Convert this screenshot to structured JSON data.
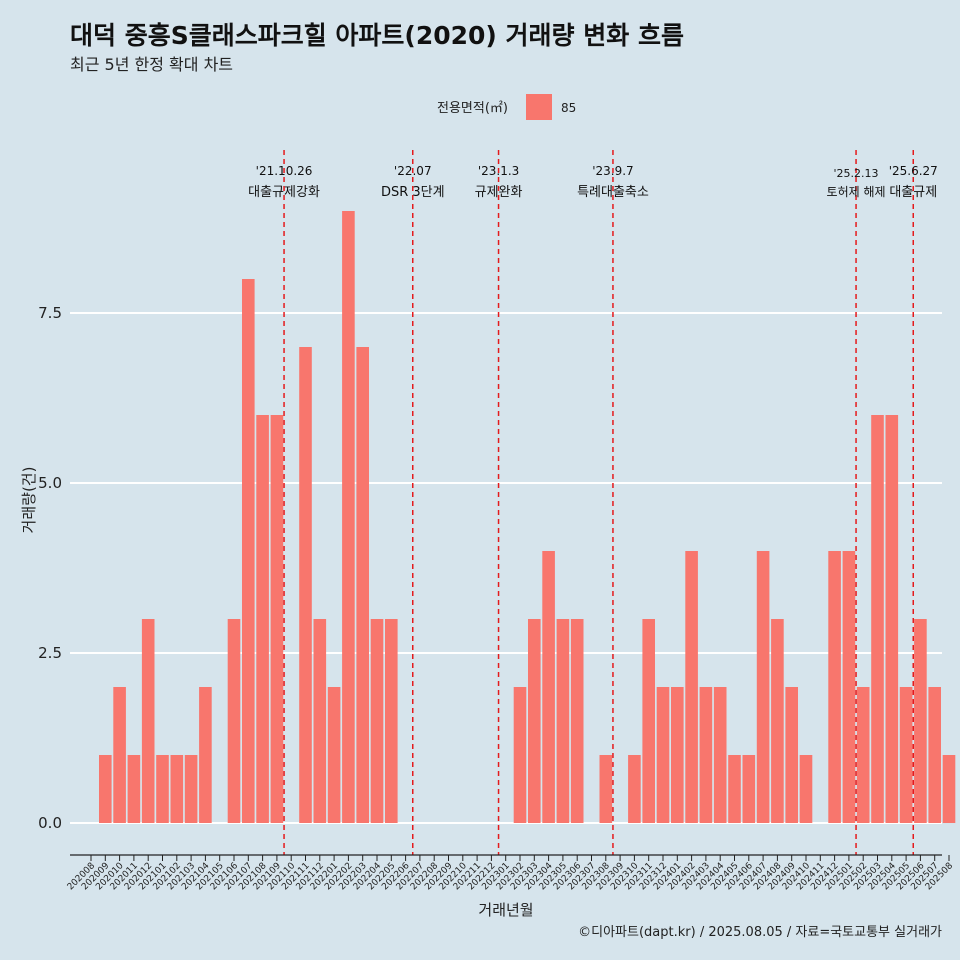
{
  "colors": {
    "background": "#d6e4ec",
    "bar": "#f8766d",
    "event_line": "#e41a1c",
    "grid": "#ffffff",
    "text": "#1a1a1a"
  },
  "chart_data": {
    "type": "bar",
    "title": "대덕 중흥S클래스파크힐 아파트(2020) 거래량 변화 흐름",
    "subtitle": "최근 5년 한정 확대 차트",
    "xlabel": "거래년월",
    "ylabel": "거래량(건)",
    "caption": "©디아파트(dapt.kr) / 2025.08.05 / 자료=국토교통부 실거래가",
    "legend": {
      "title": "전용면적(㎡)",
      "position": "top",
      "items": [
        {
          "label": "85",
          "color": "#f8766d"
        }
      ]
    },
    "ylim": [
      0,
      9
    ],
    "y_ticks": [
      0,
      2.5,
      5,
      7.5
    ],
    "y_tick_labels": [
      "0.0",
      "2.5",
      "5.0",
      "7.5"
    ],
    "grid": true,
    "categories": [
      "202008",
      "202009",
      "202010",
      "202011",
      "202012",
      "202101",
      "202102",
      "202103",
      "202104",
      "202105",
      "202106",
      "202107",
      "202108",
      "202109",
      "202110",
      "202111",
      "202112",
      "202201",
      "202202",
      "202203",
      "202204",
      "202205",
      "202206",
      "202207",
      "202208",
      "202209",
      "202210",
      "202211",
      "202212",
      "202301",
      "202302",
      "202303",
      "202304",
      "202305",
      "202306",
      "202307",
      "202308",
      "202309",
      "202310",
      "202311",
      "202312",
      "202401",
      "202402",
      "202403",
      "202404",
      "202405",
      "202406",
      "202407",
      "202408",
      "202409",
      "202410",
      "202411",
      "202412",
      "202501",
      "202502",
      "202503",
      "202504",
      "202505",
      "202506",
      "202507",
      "202508"
    ],
    "series": [
      {
        "name": "85",
        "values": [
          0,
          1,
          2,
          1,
          3,
          1,
          1,
          1,
          2,
          0,
          3,
          8,
          6,
          6,
          0,
          7,
          3,
          2,
          9,
          7,
          3,
          3,
          0,
          0,
          0,
          0,
          0,
          0,
          0,
          0,
          2,
          3,
          4,
          3,
          3,
          0,
          1,
          0,
          1,
          3,
          2,
          2,
          4,
          2,
          2,
          1,
          1,
          4,
          3,
          2,
          1,
          0,
          4,
          4,
          2,
          6,
          6,
          2,
          3,
          2,
          1
        ]
      }
    ],
    "events": [
      {
        "x": "202110",
        "date_label": "'21.10.26",
        "text": "대출규제강화"
      },
      {
        "x": "202207",
        "date_label": "'22.07",
        "text": "DSR 3단계"
      },
      {
        "x": "202301",
        "date_label": "'23.1.3",
        "text": "규제완화"
      },
      {
        "x": "202309",
        "date_label": "'23.9.7",
        "text": "특례대출축소"
      },
      {
        "x": "202502",
        "date_label": "'25.2.13",
        "text": "토허제 해제"
      },
      {
        "x": "202506",
        "date_label": "'25.6.27",
        "text": "대출규제"
      }
    ]
  }
}
